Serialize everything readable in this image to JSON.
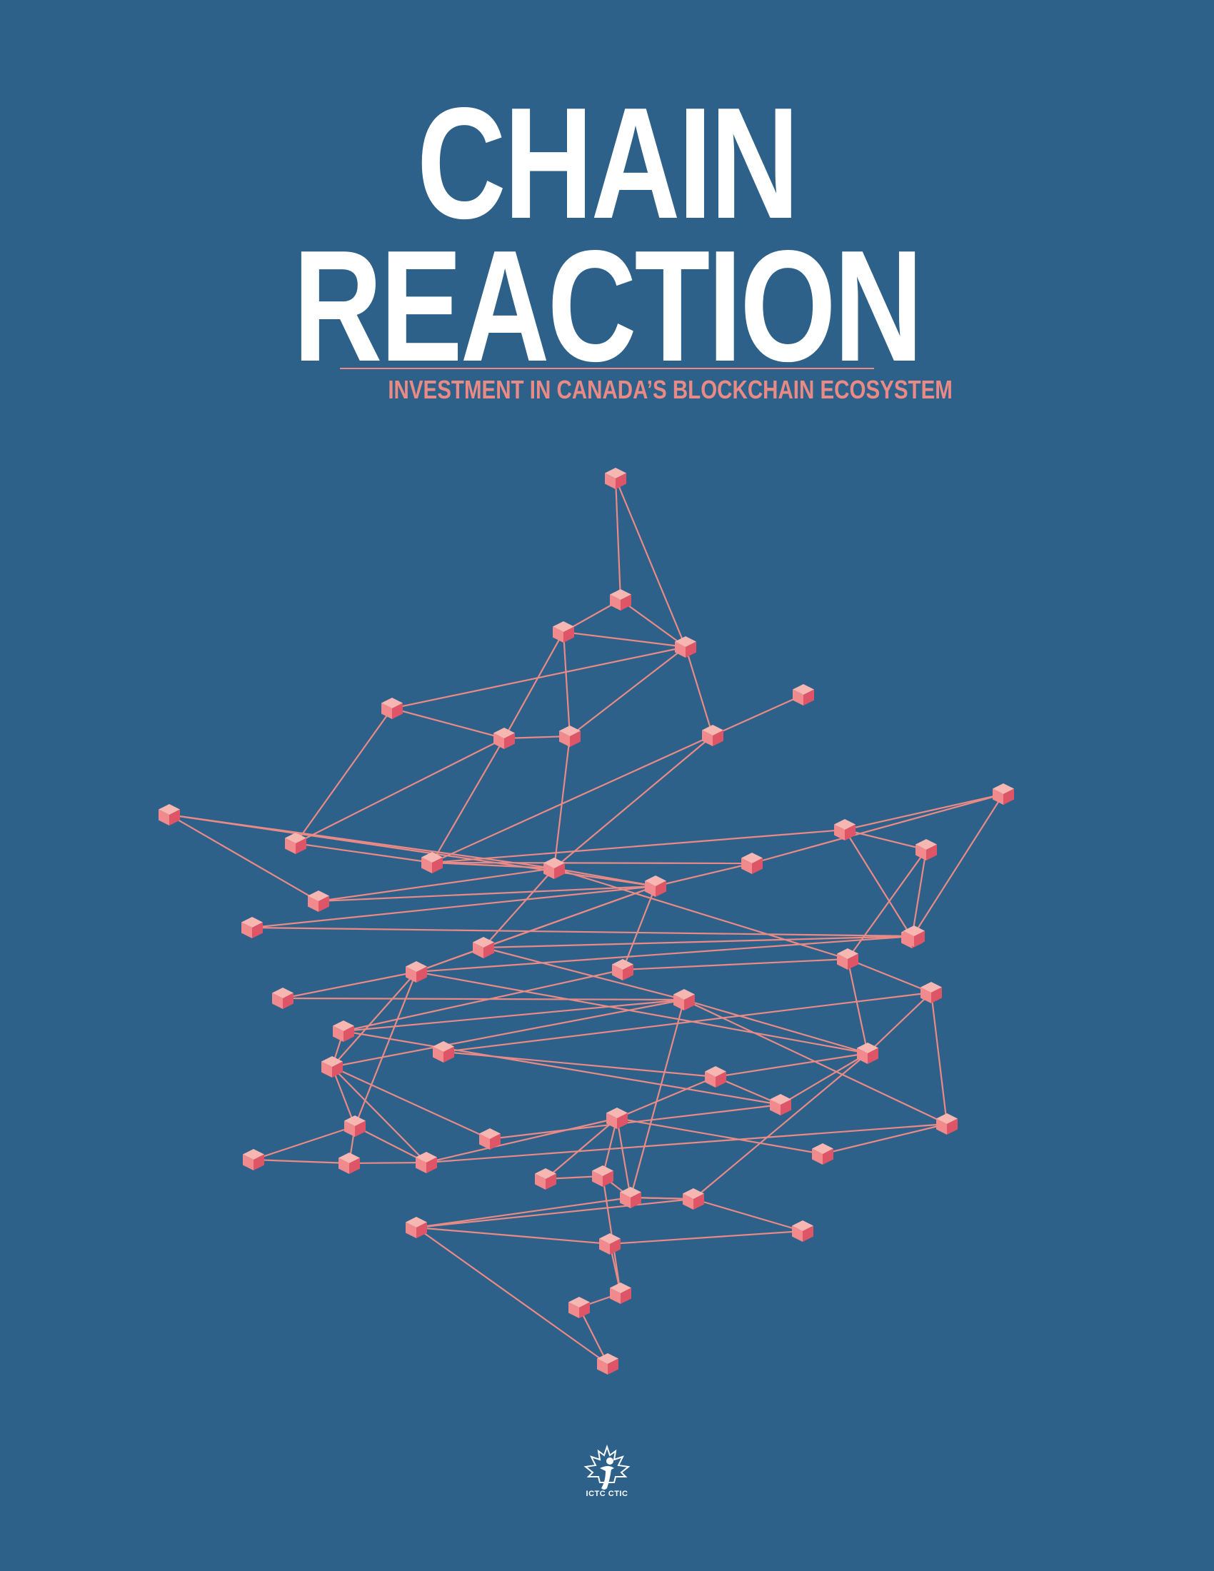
{
  "cover": {
    "title_line_1": "CHAIN",
    "title_line_2": "REACTION",
    "subtitle": "INVESTMENT IN CANADA’S BLOCKCHAIN ECOSYSTEM"
  },
  "colors": {
    "background": "#2d6189",
    "title": "#ffffff",
    "accent": "#e98a86",
    "node_top": "#f6b7b3",
    "node_left": "#f08a8c",
    "node_right": "#de5567"
  },
  "logo": {
    "icon": "maple-leaf-logo-icon",
    "text": "ICTC CTIC"
  },
  "illustration": {
    "icon": "maple-leaf-blockchain-network-icon"
  }
}
